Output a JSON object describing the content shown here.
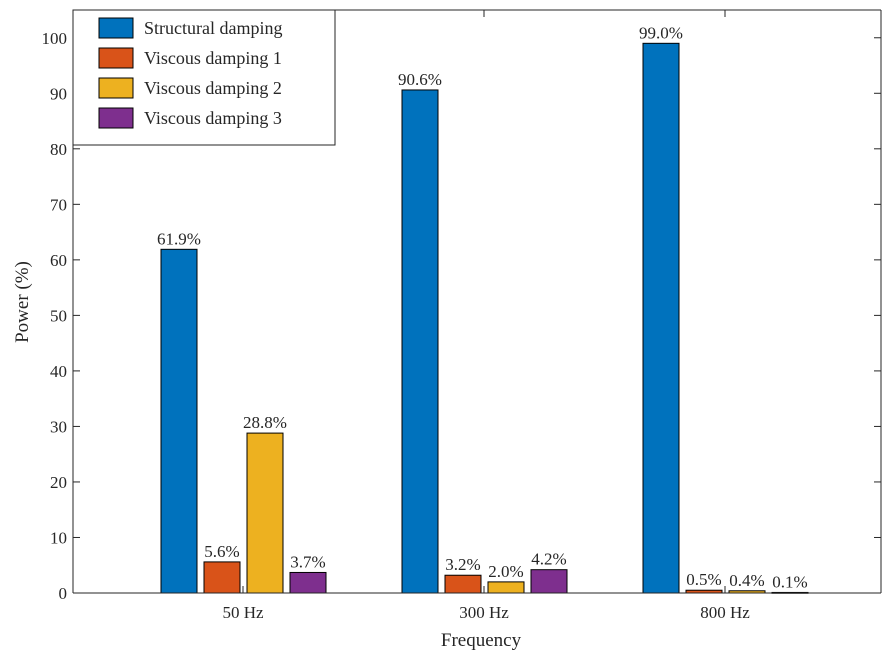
{
  "chart_data": {
    "type": "bar",
    "title": "",
    "xlabel": "Frequency",
    "ylabel": "Power (%)",
    "ylim": [
      0,
      105
    ],
    "yticks": [
      0,
      10,
      20,
      30,
      40,
      50,
      60,
      70,
      80,
      90,
      100
    ],
    "categories": [
      "50 Hz",
      "300 Hz",
      "800 Hz"
    ],
    "series": [
      {
        "name": "Structural damping",
        "color": "#0072BD",
        "values": [
          61.9,
          90.6,
          99.0
        ],
        "labels": [
          "61.9%",
          "90.6%",
          "99.0%"
        ]
      },
      {
        "name": "Viscous damping 1",
        "color": "#D95319",
        "values": [
          5.6,
          3.2,
          0.5
        ],
        "labels": [
          "5.6%",
          "3.2%",
          "0.5%"
        ]
      },
      {
        "name": "Viscous damping 2",
        "color": "#EDB120",
        "values": [
          28.8,
          2.0,
          0.4
        ],
        "labels": [
          "28.8%",
          "2.0%",
          "0.4%"
        ]
      },
      {
        "name": "Viscous damping 3",
        "color": "#7E2F8E",
        "values": [
          3.7,
          4.2,
          0.1
        ],
        "labels": [
          "3.7%",
          "4.2%",
          "0.1%"
        ]
      }
    ],
    "legend_position": "top-left",
    "grid": false
  }
}
